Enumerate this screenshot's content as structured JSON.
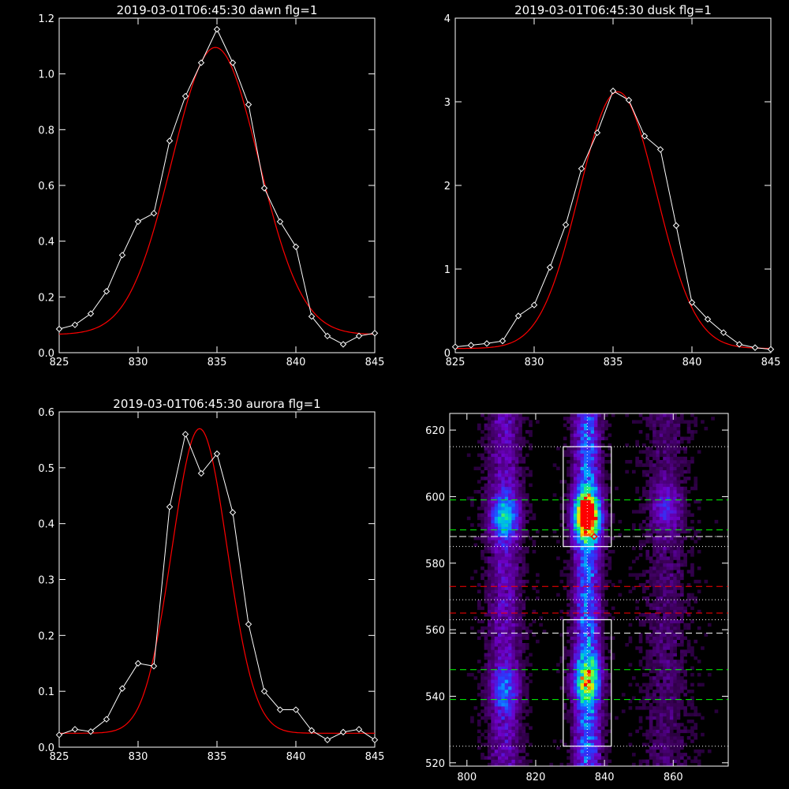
{
  "colors": {
    "background": "#000000",
    "axis": "#ffffff",
    "data": "#ffffff",
    "fit": "#ff0000",
    "dash_green": "#00ff00",
    "dash_red": "#ff0000",
    "dash_white": "#ffffff"
  },
  "chart_data": [
    {
      "type": "line",
      "title": "2019-03-01T06:45:30 dawn flg=1",
      "xlim": [
        825,
        845
      ],
      "ylim": [
        0,
        1.2
      ],
      "xticks": [
        825,
        830,
        835,
        840,
        845
      ],
      "yticks": [
        0.0,
        0.2,
        0.4,
        0.6,
        0.8,
        1.0,
        1.2
      ],
      "ytick_labels": [
        "0.0",
        "0.2",
        "0.4",
        "0.6",
        "0.8",
        "1.0",
        "1.2"
      ],
      "series": [
        {
          "role": "data",
          "marker": "diamond",
          "x": [
            825,
            826,
            827,
            828,
            829,
            830,
            831,
            832,
            833,
            834,
            835,
            836,
            837,
            838,
            839,
            840,
            841,
            842,
            843,
            844,
            845
          ],
          "y": [
            0.085,
            0.1,
            0.14,
            0.22,
            0.35,
            0.47,
            0.5,
            0.76,
            0.92,
            1.04,
            1.16,
            1.04,
            0.89,
            0.59,
            0.47,
            0.38,
            0.13,
            0.06,
            0.03,
            0.06,
            0.07
          ]
        },
        {
          "role": "fit",
          "model": "gaussian",
          "amp": 1.03,
          "mu": 834.9,
          "sigma": 2.75,
          "base": 0.065
        }
      ]
    },
    {
      "type": "line",
      "title": "2019-03-01T06:45:30 dusk flg=1",
      "xlim": [
        825,
        845
      ],
      "ylim": [
        0,
        4
      ],
      "xticks": [
        825,
        830,
        835,
        840,
        845
      ],
      "yticks": [
        0,
        1,
        2,
        3,
        4
      ],
      "ytick_labels": [
        "0",
        "1",
        "2",
        "3",
        "4"
      ],
      "series": [
        {
          "role": "data",
          "marker": "diamond",
          "x": [
            825,
            826,
            827,
            828,
            829,
            830,
            831,
            832,
            833,
            834,
            835,
            836,
            837,
            838,
            839,
            840,
            841,
            842,
            843,
            844,
            845
          ],
          "y": [
            0.07,
            0.09,
            0.11,
            0.14,
            0.44,
            0.57,
            1.02,
            1.53,
            2.2,
            2.63,
            3.13,
            3.02,
            2.59,
            2.43,
            1.52,
            0.6,
            0.4,
            0.24,
            0.1,
            0.06,
            0.04
          ]
        },
        {
          "role": "fit",
          "model": "gaussian",
          "amp": 3.07,
          "mu": 835.3,
          "sigma": 2.45,
          "base": 0.05
        }
      ]
    },
    {
      "type": "line",
      "title": "2019-03-01T06:45:30 aurora flg=1",
      "xlim": [
        825,
        845
      ],
      "ylim": [
        0,
        0.6
      ],
      "xticks": [
        825,
        830,
        835,
        840,
        845
      ],
      "yticks": [
        0.0,
        0.1,
        0.2,
        0.3,
        0.4,
        0.5,
        0.6
      ],
      "ytick_labels": [
        "0.0",
        "0.1",
        "0.2",
        "0.3",
        "0.4",
        "0.5",
        "0.6"
      ],
      "series": [
        {
          "role": "data",
          "marker": "diamond",
          "x": [
            825,
            826,
            827,
            828,
            829,
            830,
            831,
            832,
            833,
            834,
            835,
            836,
            837,
            838,
            839,
            840,
            841,
            842,
            843,
            844,
            845
          ],
          "y": [
            0.022,
            0.032,
            0.028,
            0.05,
            0.105,
            0.15,
            0.145,
            0.43,
            0.56,
            0.49,
            0.525,
            0.42,
            0.22,
            0.1,
            0.067,
            0.067,
            0.03,
            0.013,
            0.027,
            0.032,
            0.013
          ]
        },
        {
          "role": "fit",
          "model": "gaussian",
          "amp": 0.545,
          "mu": 833.9,
          "sigma": 1.75,
          "base": 0.025
        }
      ]
    },
    {
      "type": "heatmap",
      "title": "",
      "xlim": [
        795,
        876
      ],
      "ylim": [
        519,
        625
      ],
      "xticks": [
        800,
        820,
        840,
        860
      ],
      "yticks": [
        520,
        540,
        560,
        580,
        600,
        620
      ],
      "columns": [
        {
          "x": 811,
          "width": 3.5,
          "strength": 0.55
        },
        {
          "x": 835,
          "width": 2.8,
          "strength": 1.0
        },
        {
          "x": 858,
          "width": 4.5,
          "strength": 0.3
        }
      ],
      "hotspots": [
        {
          "x": 835,
          "y": 594,
          "peak": 1.0
        },
        {
          "x": 811,
          "y": 594,
          "peak": 0.55
        },
        {
          "x": 811,
          "y": 542,
          "peak": 0.35
        },
        {
          "x": 835,
          "y": 545,
          "peak": 0.55
        },
        {
          "x": 858,
          "y": 597,
          "peak": 0.3
        }
      ],
      "vline_dotted_x": 835,
      "hlines_dotted_white": [
        615,
        585,
        563,
        525,
        588,
        569
      ],
      "hlines_dashed_green": [
        599,
        590,
        548,
        539
      ],
      "hlines_dashed_white": [
        588,
        559
      ],
      "hlines_dashed_red": [
        573,
        565
      ],
      "boxes": [
        {
          "x0": 828,
          "x1": 842,
          "y0": 585,
          "y1": 615
        },
        {
          "x0": 828,
          "x1": 842,
          "y0": 525,
          "y1": 563
        }
      ],
      "markers": [
        {
          "x": 835,
          "y": 594,
          "color": "#ff0000",
          "shape": "diamond"
        },
        {
          "x": 837,
          "y": 588,
          "color": "#ff0000",
          "shape": "diamond"
        }
      ]
    }
  ]
}
